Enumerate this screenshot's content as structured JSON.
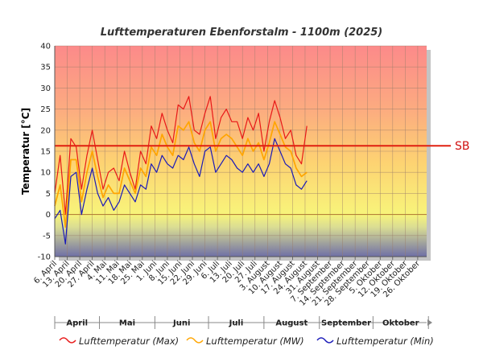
{
  "chart_data": {
    "type": "line",
    "title": "Lufttemperaturen Ebenforstalm - 1100m (2025)",
    "ylabel": "Temperatur [°C]",
    "ylim": [
      -10,
      40
    ],
    "yticks": [
      -10,
      -5,
      0,
      5,
      10,
      15,
      20,
      25,
      30,
      35,
      40
    ],
    "grid": true,
    "legend_position": "bottom",
    "x_start": "2025-04-06",
    "x_end": "2025-10-31",
    "xtick_labels": [
      "6. April",
      "13. April",
      "20. April",
      "27. April",
      "4. Mai",
      "11. Mai",
      "18. Mai",
      "25. Mai",
      "1. Juni",
      "8. Juni",
      "15. Juni",
      "22. Juni",
      "29. Juni",
      "6. Juli",
      "13. Juli",
      "20. Juli",
      "27. Juli",
      "3. August",
      "10. August",
      "17. August",
      "24. August",
      "31. August",
      "7. September",
      "14. September",
      "21. September",
      "28. September",
      "5. Oktober",
      "12. Oktober",
      "19. Oktober",
      "26. Oktober"
    ],
    "months": [
      "April",
      "Mai",
      "Juni",
      "Juli",
      "August",
      "September",
      "Oktober"
    ],
    "reference_line": {
      "label": "SB",
      "value": 16.3,
      "color": "#e02010"
    },
    "colors": {
      "max": "#e81818",
      "mw": "#ffa500",
      "min": "#1a1ab8"
    },
    "x_dates": [
      "2025-04-06",
      "2025-04-09",
      "2025-04-12",
      "2025-04-15",
      "2025-04-18",
      "2025-04-21",
      "2025-04-24",
      "2025-04-27",
      "2025-04-30",
      "2025-05-03",
      "2025-05-06",
      "2025-05-09",
      "2025-05-12",
      "2025-05-15",
      "2025-05-18",
      "2025-05-21",
      "2025-05-24",
      "2025-05-27",
      "2025-05-30",
      "2025-06-02",
      "2025-06-05",
      "2025-06-08",
      "2025-06-11",
      "2025-06-14",
      "2025-06-17",
      "2025-06-20",
      "2025-06-23",
      "2025-06-26",
      "2025-06-29",
      "2025-07-02",
      "2025-07-05",
      "2025-07-08",
      "2025-07-11",
      "2025-07-14",
      "2025-07-17",
      "2025-07-20",
      "2025-07-23",
      "2025-07-26",
      "2025-07-29",
      "2025-08-01",
      "2025-08-04",
      "2025-08-07",
      "2025-08-10",
      "2025-08-13",
      "2025-08-16",
      "2025-08-19",
      "2025-08-22",
      "2025-08-25"
    ],
    "series": [
      {
        "name": "Lufttemperatur (Max)",
        "key": "max",
        "values": [
          5,
          14,
          0,
          18,
          16,
          6,
          14,
          20,
          13,
          6,
          10,
          11,
          8,
          15,
          10,
          6,
          15,
          12,
          21,
          18,
          24,
          20,
          17,
          26,
          25,
          28,
          20,
          19,
          24,
          28,
          18,
          23,
          25,
          22,
          22,
          18,
          23,
          20,
          24,
          15,
          22,
          27,
          23,
          18,
          20,
          14,
          12,
          21
        ]
      },
      {
        "name": "Lufttemperatur (MW)",
        "key": "mw",
        "values": [
          2,
          7,
          -3,
          13,
          13,
          3,
          10,
          15,
          9,
          4,
          7,
          5,
          5,
          11,
          8,
          5,
          11,
          9,
          16,
          14,
          19,
          16,
          14,
          21,
          20,
          22,
          17,
          15,
          20,
          22,
          15,
          18,
          19,
          18,
          16,
          14,
          18,
          15,
          17,
          13,
          17,
          22,
          19,
          16,
          15,
          11,
          9,
          10
        ]
      },
      {
        "name": "Lufttemperatur (Min)",
        "key": "min",
        "values": [
          -1,
          1,
          -7,
          9,
          10,
          0,
          6,
          11,
          5,
          2,
          4,
          1,
          3,
          7,
          5,
          3,
          7,
          6,
          12,
          10,
          14,
          12,
          11,
          14,
          13,
          16,
          12,
          9,
          15,
          16,
          10,
          12,
          14,
          13,
          11,
          10,
          12,
          10,
          12,
          9,
          12,
          18,
          15,
          12,
          11,
          7,
          6,
          8
        ]
      }
    ]
  }
}
